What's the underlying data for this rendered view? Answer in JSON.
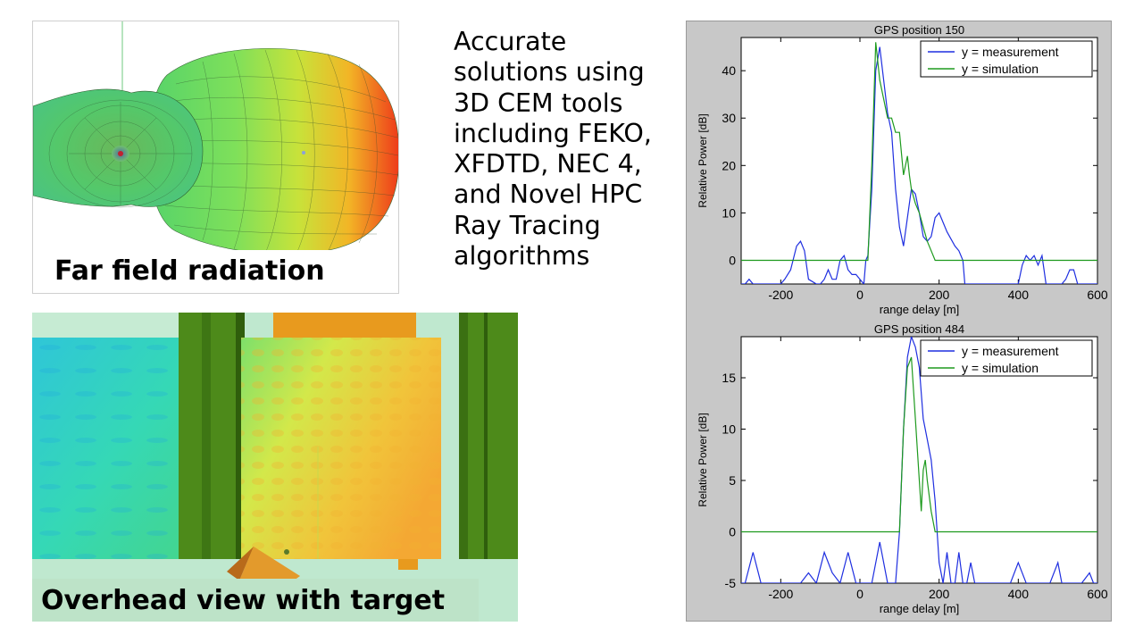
{
  "farfield": {
    "caption": "Far field radiation"
  },
  "overhead": {
    "caption": "Overhead view with target"
  },
  "description": {
    "lines": [
      "Accurate",
      "solutions using",
      "3D CEM tools",
      "including FEKO,",
      "XFDTD, NEC 4,",
      "and Novel HPC",
      "Ray Tracing",
      "algorithms"
    ]
  },
  "colors": {
    "measurement": "#1f2fe0",
    "simulation": "#1e9a1e",
    "plot_bg": "#c8c8c8"
  },
  "chart_data": [
    {
      "type": "line",
      "title": "GPS position 150",
      "xlabel": "range delay [m]",
      "ylabel": "Relative Power [dB]",
      "xlim": [
        -300,
        600
      ],
      "ylim": [
        -5,
        47
      ],
      "xticks": [
        -200,
        0,
        200,
        400,
        600
      ],
      "yticks": [
        0,
        10,
        20,
        30,
        40
      ],
      "legend_loc": "top-right",
      "series": [
        {
          "name": "y = measurement",
          "x": [
            -300,
            -290,
            -280,
            -270,
            -250,
            -230,
            -210,
            -200,
            -190,
            -175,
            -160,
            -150,
            -140,
            -130,
            -110,
            -100,
            -90,
            -80,
            -70,
            -60,
            -50,
            -40,
            -30,
            -20,
            -10,
            0,
            10,
            15,
            20,
            30,
            40,
            50,
            60,
            70,
            80,
            90,
            100,
            110,
            115,
            125,
            130,
            140,
            150,
            160,
            170,
            180,
            190,
            200,
            210,
            220,
            240,
            250,
            260,
            265,
            270,
            280,
            300,
            320,
            340,
            360,
            380,
            400,
            410,
            420,
            430,
            440,
            450,
            460,
            470,
            480,
            490,
            500,
            510,
            520,
            530,
            540,
            550,
            560,
            580,
            600
          ],
          "y": [
            -5,
            -5,
            -4,
            -5,
            -5,
            -5,
            -5,
            -5,
            -4,
            -2,
            3,
            4,
            2,
            -4,
            -5,
            -5,
            -4,
            -2,
            -4,
            -4,
            0,
            1,
            -2,
            -3,
            -3,
            -4,
            -5,
            0,
            1,
            15,
            40,
            45,
            38,
            31,
            27,
            15,
            7,
            3,
            6,
            12,
            15,
            14,
            10,
            5,
            4,
            5,
            9,
            10,
            8,
            6,
            3,
            2,
            0,
            -5,
            -5,
            -5,
            -5,
            -5,
            -5,
            -5,
            -5,
            -5,
            -1,
            1,
            0,
            1,
            -1,
            1,
            -5,
            -5,
            -5,
            -5,
            -5,
            -4,
            -2,
            -2,
            -5,
            -5,
            -5,
            -5
          ]
        },
        {
          "name": "y = simulation",
          "x": [
            -300,
            20,
            30,
            40,
            50,
            60,
            70,
            80,
            90,
            100,
            110,
            120,
            125,
            130,
            140,
            150,
            160,
            170,
            180,
            190,
            200,
            600
          ],
          "y": [
            0,
            0,
            20,
            46,
            38,
            34,
            30,
            30,
            27,
            27,
            18,
            22,
            18,
            15,
            12,
            10,
            7,
            4,
            2,
            0,
            0,
            0
          ]
        }
      ]
    },
    {
      "type": "line",
      "title": "GPS position 484",
      "xlabel": "range delay [m]",
      "ylabel": "Relative Power [dB]",
      "xlim": [
        -300,
        600
      ],
      "ylim": [
        -5,
        19
      ],
      "xticks": [
        -200,
        0,
        200,
        400,
        600
      ],
      "yticks": [
        -5,
        0,
        5,
        10,
        15
      ],
      "legend_loc": "top-right",
      "series": [
        {
          "name": "y = measurement",
          "x": [
            -300,
            -290,
            -270,
            -250,
            -230,
            -210,
            -190,
            -170,
            -150,
            -130,
            -110,
            -90,
            -70,
            -50,
            -30,
            -10,
            10,
            30,
            50,
            70,
            90,
            100,
            110,
            120,
            130,
            140,
            150,
            160,
            170,
            180,
            190,
            200,
            210,
            220,
            230,
            240,
            250,
            260,
            270,
            280,
            290,
            300,
            320,
            340,
            360,
            380,
            400,
            420,
            440,
            460,
            480,
            500,
            510,
            520,
            540,
            560,
            580,
            590,
            600
          ],
          "y": [
            -5,
            -5,
            -2,
            -5,
            -5,
            -5,
            -5,
            -5,
            -5,
            -4,
            -5,
            -2,
            -4,
            -5,
            -2,
            -5,
            -5,
            -5,
            -1,
            -5,
            -5,
            0,
            10,
            17,
            19,
            18,
            16,
            11,
            9,
            7,
            3,
            -3,
            -5,
            -2,
            -5,
            -5,
            -2,
            -5,
            -5,
            -3,
            -5,
            -5,
            -5,
            -5,
            -5,
            -5,
            -3,
            -5,
            -5,
            -5,
            -5,
            -3,
            -5,
            -5,
            -5,
            -5,
            -4,
            -5,
            -5
          ]
        },
        {
          "name": "y = simulation",
          "x": [
            -300,
            100,
            110,
            120,
            130,
            140,
            150,
            155,
            160,
            165,
            170,
            180,
            190,
            600
          ],
          "y": [
            0,
            0,
            10,
            16,
            17,
            11,
            5,
            2,
            6,
            7,
            5,
            2,
            0,
            0
          ]
        }
      ]
    }
  ]
}
